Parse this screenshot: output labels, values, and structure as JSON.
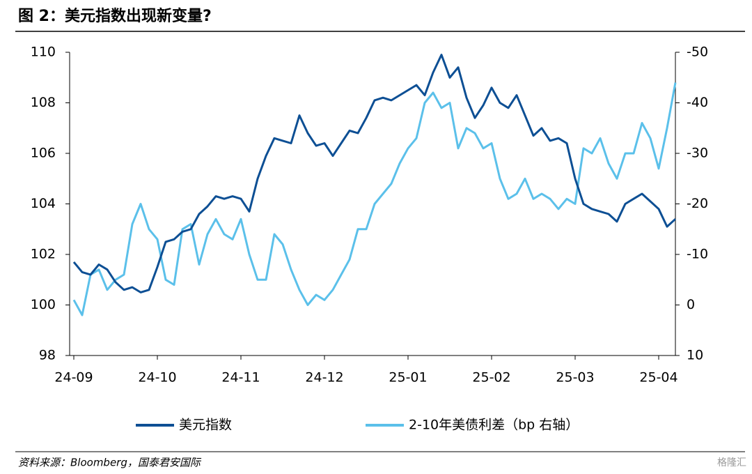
{
  "chart_data": {
    "type": "line",
    "title": "图 2：美元指数出现新变量?",
    "source": "资料来源：Bloomberg，国泰君安国际",
    "watermark": "格隆汇",
    "categories": [
      "24-09",
      null,
      null,
      null,
      null,
      null,
      null,
      null,
      null,
      null,
      "24-10",
      null,
      null,
      null,
      null,
      null,
      null,
      null,
      null,
      null,
      "24-11",
      null,
      null,
      null,
      null,
      null,
      null,
      null,
      null,
      null,
      "24-12",
      null,
      null,
      null,
      null,
      null,
      null,
      null,
      null,
      null,
      "25-01",
      null,
      null,
      null,
      null,
      null,
      null,
      null,
      null,
      null,
      "25-02",
      null,
      null,
      null,
      null,
      null,
      null,
      null,
      null,
      null,
      "25-03",
      null,
      null,
      null,
      null,
      null,
      null,
      null,
      null,
      null,
      "25-04",
      null,
      null
    ],
    "series": [
      {
        "name": "美元指数",
        "color": "#0d4f94",
        "values": [
          101.7,
          101.3,
          101.2,
          101.6,
          101.4,
          100.9,
          100.6,
          100.7,
          100.5,
          100.6,
          101.5,
          102.5,
          102.6,
          102.9,
          103.0,
          103.6,
          103.9,
          104.3,
          104.2,
          104.3,
          104.2,
          103.7,
          105.0,
          105.9,
          106.6,
          106.5,
          106.4,
          107.5,
          106.8,
          106.3,
          106.4,
          105.9,
          106.4,
          106.9,
          106.8,
          107.4,
          108.1,
          108.2,
          108.1,
          108.3,
          108.5,
          108.7,
          108.3,
          109.2,
          109.9,
          109.0,
          109.4,
          108.2,
          107.4,
          107.9,
          108.6,
          108.0,
          107.8,
          108.3,
          107.5,
          106.7,
          107.0,
          106.5,
          106.6,
          106.4,
          105.0,
          104.0,
          103.8,
          103.7,
          103.6,
          103.3,
          104.0,
          104.2,
          104.4,
          104.1,
          103.8,
          103.1,
          103.4
        ]
      },
      {
        "name": "2-10年美债利差（bp 右轴）",
        "color": "#5bc0ea",
        "axis": "y2",
        "values": [
          -1,
          2,
          -6,
          -7,
          -3,
          -5,
          -6,
          -16,
          -20,
          -15,
          -13,
          -5,
          -4,
          -15,
          -16,
          -8,
          -14,
          -17,
          -14,
          -13,
          -17,
          -10,
          -5,
          -5,
          -14,
          -12,
          -7,
          -3,
          0,
          -2,
          -1,
          -3,
          -6,
          -9,
          -15,
          -15,
          -20,
          -22,
          -24,
          -28,
          -31,
          -33,
          -40,
          -42,
          -39,
          -40,
          -31,
          -35,
          -34,
          -31,
          -32,
          -25,
          -21,
          -22,
          -25,
          -21,
          -22,
          -21,
          -19,
          -21,
          -20,
          -31,
          -30,
          -33,
          -28,
          -25,
          -30,
          -30,
          -36,
          -33,
          -27,
          -35,
          -44
        ]
      }
    ],
    "ylim": [
      98,
      110
    ],
    "yticks": [
      98,
      100,
      102,
      104,
      106,
      108,
      110
    ],
    "y2lim": [
      10,
      -50
    ],
    "y2ticks": [
      10,
      0,
      -10,
      -20,
      -30,
      -40,
      -50
    ],
    "legend": "bottom"
  }
}
